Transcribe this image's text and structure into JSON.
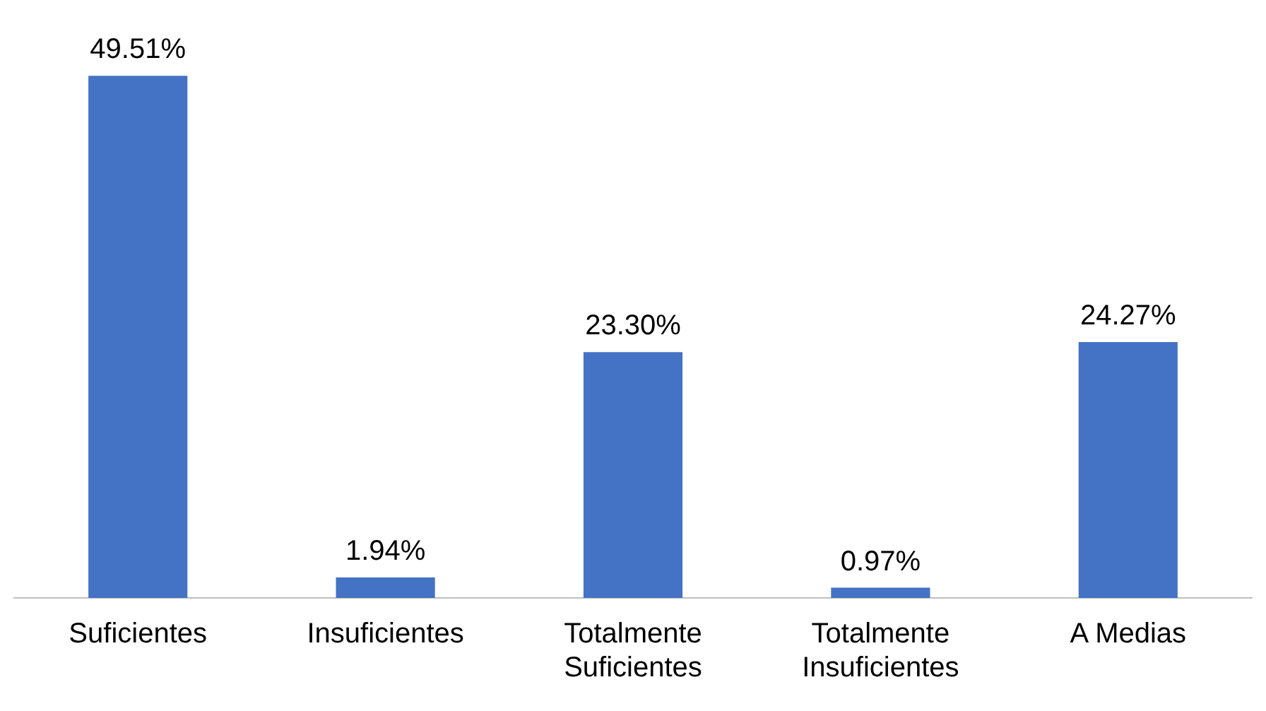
{
  "chart_data": {
    "type": "bar",
    "categories": [
      "Suficientes",
      "Insuficientes",
      "Totalmente Suficientes",
      "Totalmente Insuficientes",
      "A Medias"
    ],
    "values": [
      49.51,
      1.94,
      23.3,
      0.97,
      24.27
    ],
    "value_labels": [
      "49.51%",
      "1.94%",
      "23.30%",
      "0.97%",
      "24.27%"
    ],
    "color": "#4472c4",
    "grid": false,
    "legend": false
  }
}
